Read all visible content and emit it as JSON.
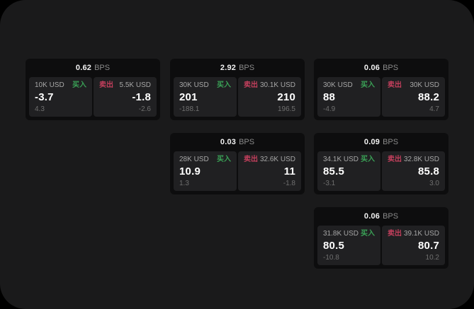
{
  "labels": {
    "bps": "BPS",
    "buy": "买入",
    "sell": "卖出"
  },
  "colors": {
    "buy_green": "#3aa156",
    "sell_red": "#c23f5c",
    "window_bg": "#1a1a1b",
    "card_bg": "#0d0d0e",
    "panel_bg": "#202022"
  },
  "cards": [
    {
      "bps": "0.62",
      "buy": {
        "amount": "10K USD",
        "value": "-3.7",
        "sub": "4.3"
      },
      "sell": {
        "amount": "5.5K USD",
        "value": "-1.8",
        "sub": "-2.6"
      }
    },
    {
      "bps": "2.92",
      "buy": {
        "amount": "30K USD",
        "value": "201",
        "sub": "-188.1"
      },
      "sell": {
        "amount": "30.1K USD",
        "value": "210",
        "sub": "196.5"
      }
    },
    {
      "bps": "0.06",
      "buy": {
        "amount": "30K USD",
        "value": "88",
        "sub": "-4.9"
      },
      "sell": {
        "amount": "30K USD",
        "value": "88.2",
        "sub": "4.7"
      }
    },
    {
      "bps": "0.03",
      "buy": {
        "amount": "28K USD",
        "value": "10.9",
        "sub": "1.3"
      },
      "sell": {
        "amount": "32.6K USD",
        "value": "11",
        "sub": "-1.8"
      }
    },
    {
      "bps": "0.09",
      "buy": {
        "amount": "34.1K USD",
        "value": "85.5",
        "sub": "-3.1"
      },
      "sell": {
        "amount": "32.8K USD",
        "value": "85.8",
        "sub": "3.0"
      }
    },
    {
      "bps": "0.06",
      "buy": {
        "amount": "31.8K USD",
        "value": "80.5",
        "sub": "-10.8"
      },
      "sell": {
        "amount": "39.1K USD",
        "value": "80.7",
        "sub": "10.2"
      }
    }
  ]
}
